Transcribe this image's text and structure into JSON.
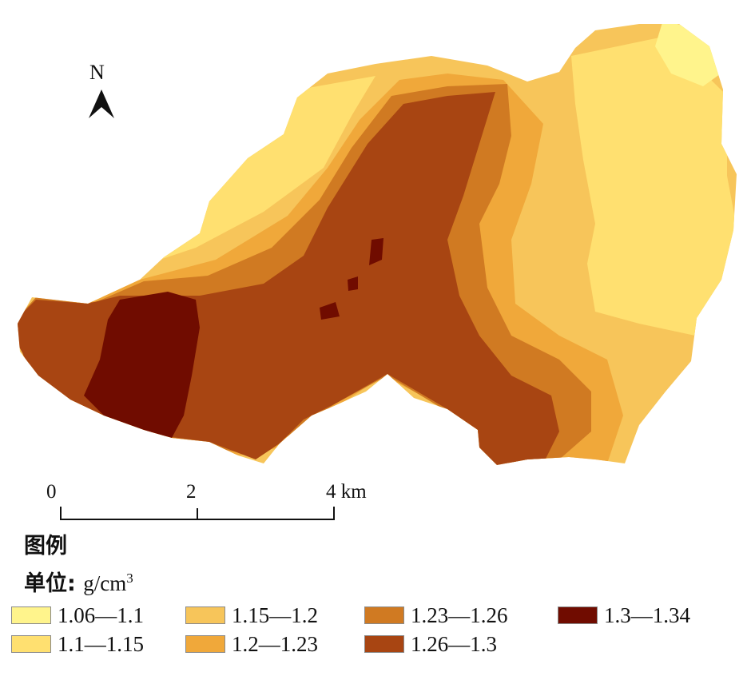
{
  "north_arrow": {
    "label": "N"
  },
  "scale_bar": {
    "labels": [
      "0",
      "2",
      "4 km"
    ]
  },
  "legend": {
    "title": "图例",
    "unit_prefix": "单位: ",
    "unit_base": "g/cm",
    "unit_exponent": "3",
    "classes": [
      {
        "label": "1.06—1.1",
        "color": "#FFF48C"
      },
      {
        "label": "1.1—1.15",
        "color": "#FFE070"
      },
      {
        "label": "1.15—1.2",
        "color": "#F7C55A"
      },
      {
        "label": "1.2—1.23",
        "color": "#F0A83A"
      },
      {
        "label": "1.23—1.26",
        "color": "#D07A22"
      },
      {
        "label": "1.26—1.3",
        "color": "#A84512"
      },
      {
        "label": "1.3—1.34",
        "color": "#700C00"
      }
    ]
  }
}
